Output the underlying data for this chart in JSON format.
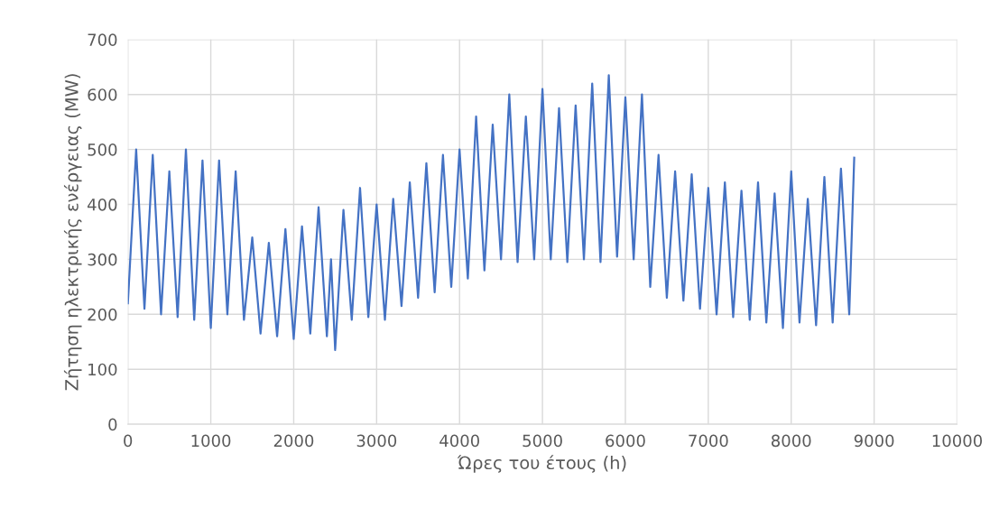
{
  "chart_data": {
    "type": "line",
    "xlabel": "Ώρες του έτους (h)",
    "ylabel": "Ζήτηση ηλεκτρικής ενέργειας (MW)",
    "xlim": [
      0,
      10000
    ],
    "xticks": [
      0,
      1000,
      2000,
      3000,
      4000,
      5000,
      6000,
      7000,
      8000,
      9000,
      10000
    ],
    "ylim": [
      0,
      700
    ],
    "yticks": [
      0,
      100,
      200,
      300,
      400,
      500,
      600,
      700
    ],
    "grid": true,
    "marker": "none",
    "line_style": "solid",
    "series": [
      {
        "color": "#4472c4",
        "x": [
          0,
          100,
          200,
          300,
          400,
          500,
          600,
          700,
          800,
          900,
          1000,
          1100,
          1200,
          1300,
          1400,
          1500,
          1600,
          1700,
          1800,
          1900,
          2000,
          2100,
          2200,
          2300,
          2400,
          2450,
          2500,
          2600,
          2700,
          2800,
          2900,
          3000,
          3100,
          3200,
          3300,
          3400,
          3500,
          3600,
          3700,
          3800,
          3900,
          4000,
          4100,
          4200,
          4300,
          4400,
          4500,
          4600,
          4700,
          4800,
          4900,
          5000,
          5100,
          5200,
          5300,
          5400,
          5500,
          5600,
          5700,
          5800,
          5900,
          6000,
          6100,
          6200,
          6300,
          6400,
          6500,
          6600,
          6700,
          6800,
          6900,
          7000,
          7100,
          7200,
          7300,
          7400,
          7500,
          7600,
          7700,
          7800,
          7900,
          8000,
          8100,
          8200,
          8300,
          8400,
          8500,
          8600,
          8700,
          8760
        ],
        "values": [
          220,
          500,
          210,
          490,
          200,
          460,
          195,
          500,
          190,
          480,
          175,
          480,
          200,
          460,
          190,
          340,
          165,
          330,
          160,
          355,
          155,
          360,
          165,
          395,
          160,
          300,
          135,
          390,
          190,
          430,
          195,
          400,
          190,
          410,
          215,
          440,
          230,
          475,
          240,
          490,
          250,
          500,
          265,
          560,
          280,
          545,
          300,
          600,
          295,
          560,
          300,
          610,
          300,
          575,
          295,
          580,
          300,
          620,
          295,
          635,
          305,
          595,
          300,
          600,
          250,
          490,
          230,
          460,
          225,
          455,
          210,
          430,
          200,
          440,
          195,
          425,
          190,
          440,
          185,
          420,
          175,
          460,
          185,
          410,
          180,
          450,
          185,
          465,
          200,
          485
        ]
      }
    ]
  }
}
